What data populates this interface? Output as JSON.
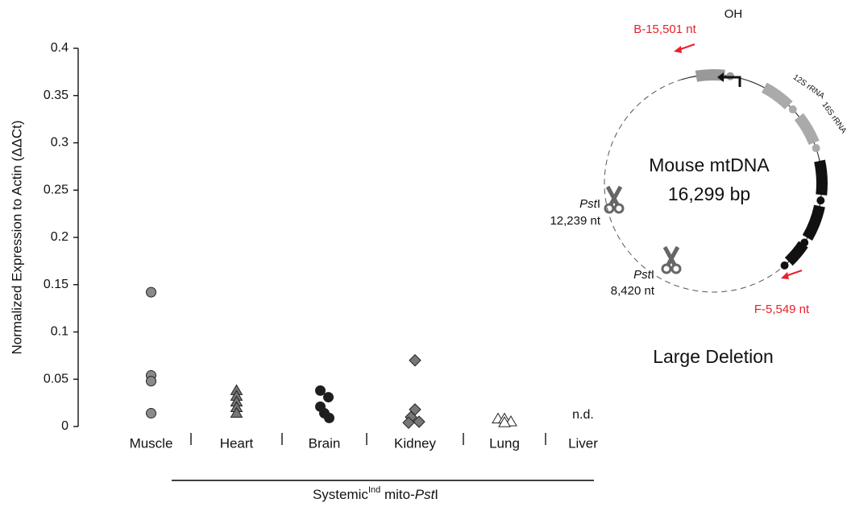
{
  "chart_data": {
    "type": "strip",
    "y_label": "Normalized Expression to Actin (ΔΔCt)",
    "x_label_parts": [
      "Systemic",
      "Ind",
      " mito-",
      "Pst",
      "I"
    ],
    "categories": [
      "Muscle",
      "Heart",
      "Brain",
      "Kidney",
      "Lung",
      "Liver"
    ],
    "values": [
      [
        0.142,
        0.054,
        0.048,
        0.014
      ],
      [
        0.038,
        0.032,
        0.026,
        0.02,
        0.014
      ],
      [
        0.038,
        0.031,
        0.021,
        0.014,
        0.009
      ],
      [
        0.07,
        0.018,
        0.01,
        0.005,
        0.004
      ],
      [
        0.008,
        0.008,
        0.005,
        0.004
      ],
      []
    ],
    "markers": [
      "circle",
      "triangle",
      "circle",
      "diamond",
      "triangle",
      "circle"
    ],
    "colors": [
      "#8a8a8a",
      "#777777",
      "#1e1e1e",
      "#777777",
      "#ffffff",
      "#8a8a8a"
    ],
    "annotation": "n.d.",
    "ylim": [
      0,
      0.4
    ],
    "yticks": [
      0,
      0.05,
      0.1,
      0.15,
      0.2,
      0.25,
      0.3,
      0.35,
      0.4
    ]
  },
  "diagram": {
    "title": "Mouse mtDNA",
    "size": "16,299 bp",
    "origin": "OH",
    "gene1": "12S rRNA",
    "gene2": "16S rRNA",
    "primer_b": "B-15,501 nt",
    "primer_f": "F-5,549 nt",
    "site1_enzyme": [
      "Pst",
      "I"
    ],
    "site1_pos": "12,239 nt",
    "site2_enzyme": [
      "Pst",
      "I"
    ],
    "site2_pos": "8,420 nt",
    "caption": "Large Deletion"
  }
}
